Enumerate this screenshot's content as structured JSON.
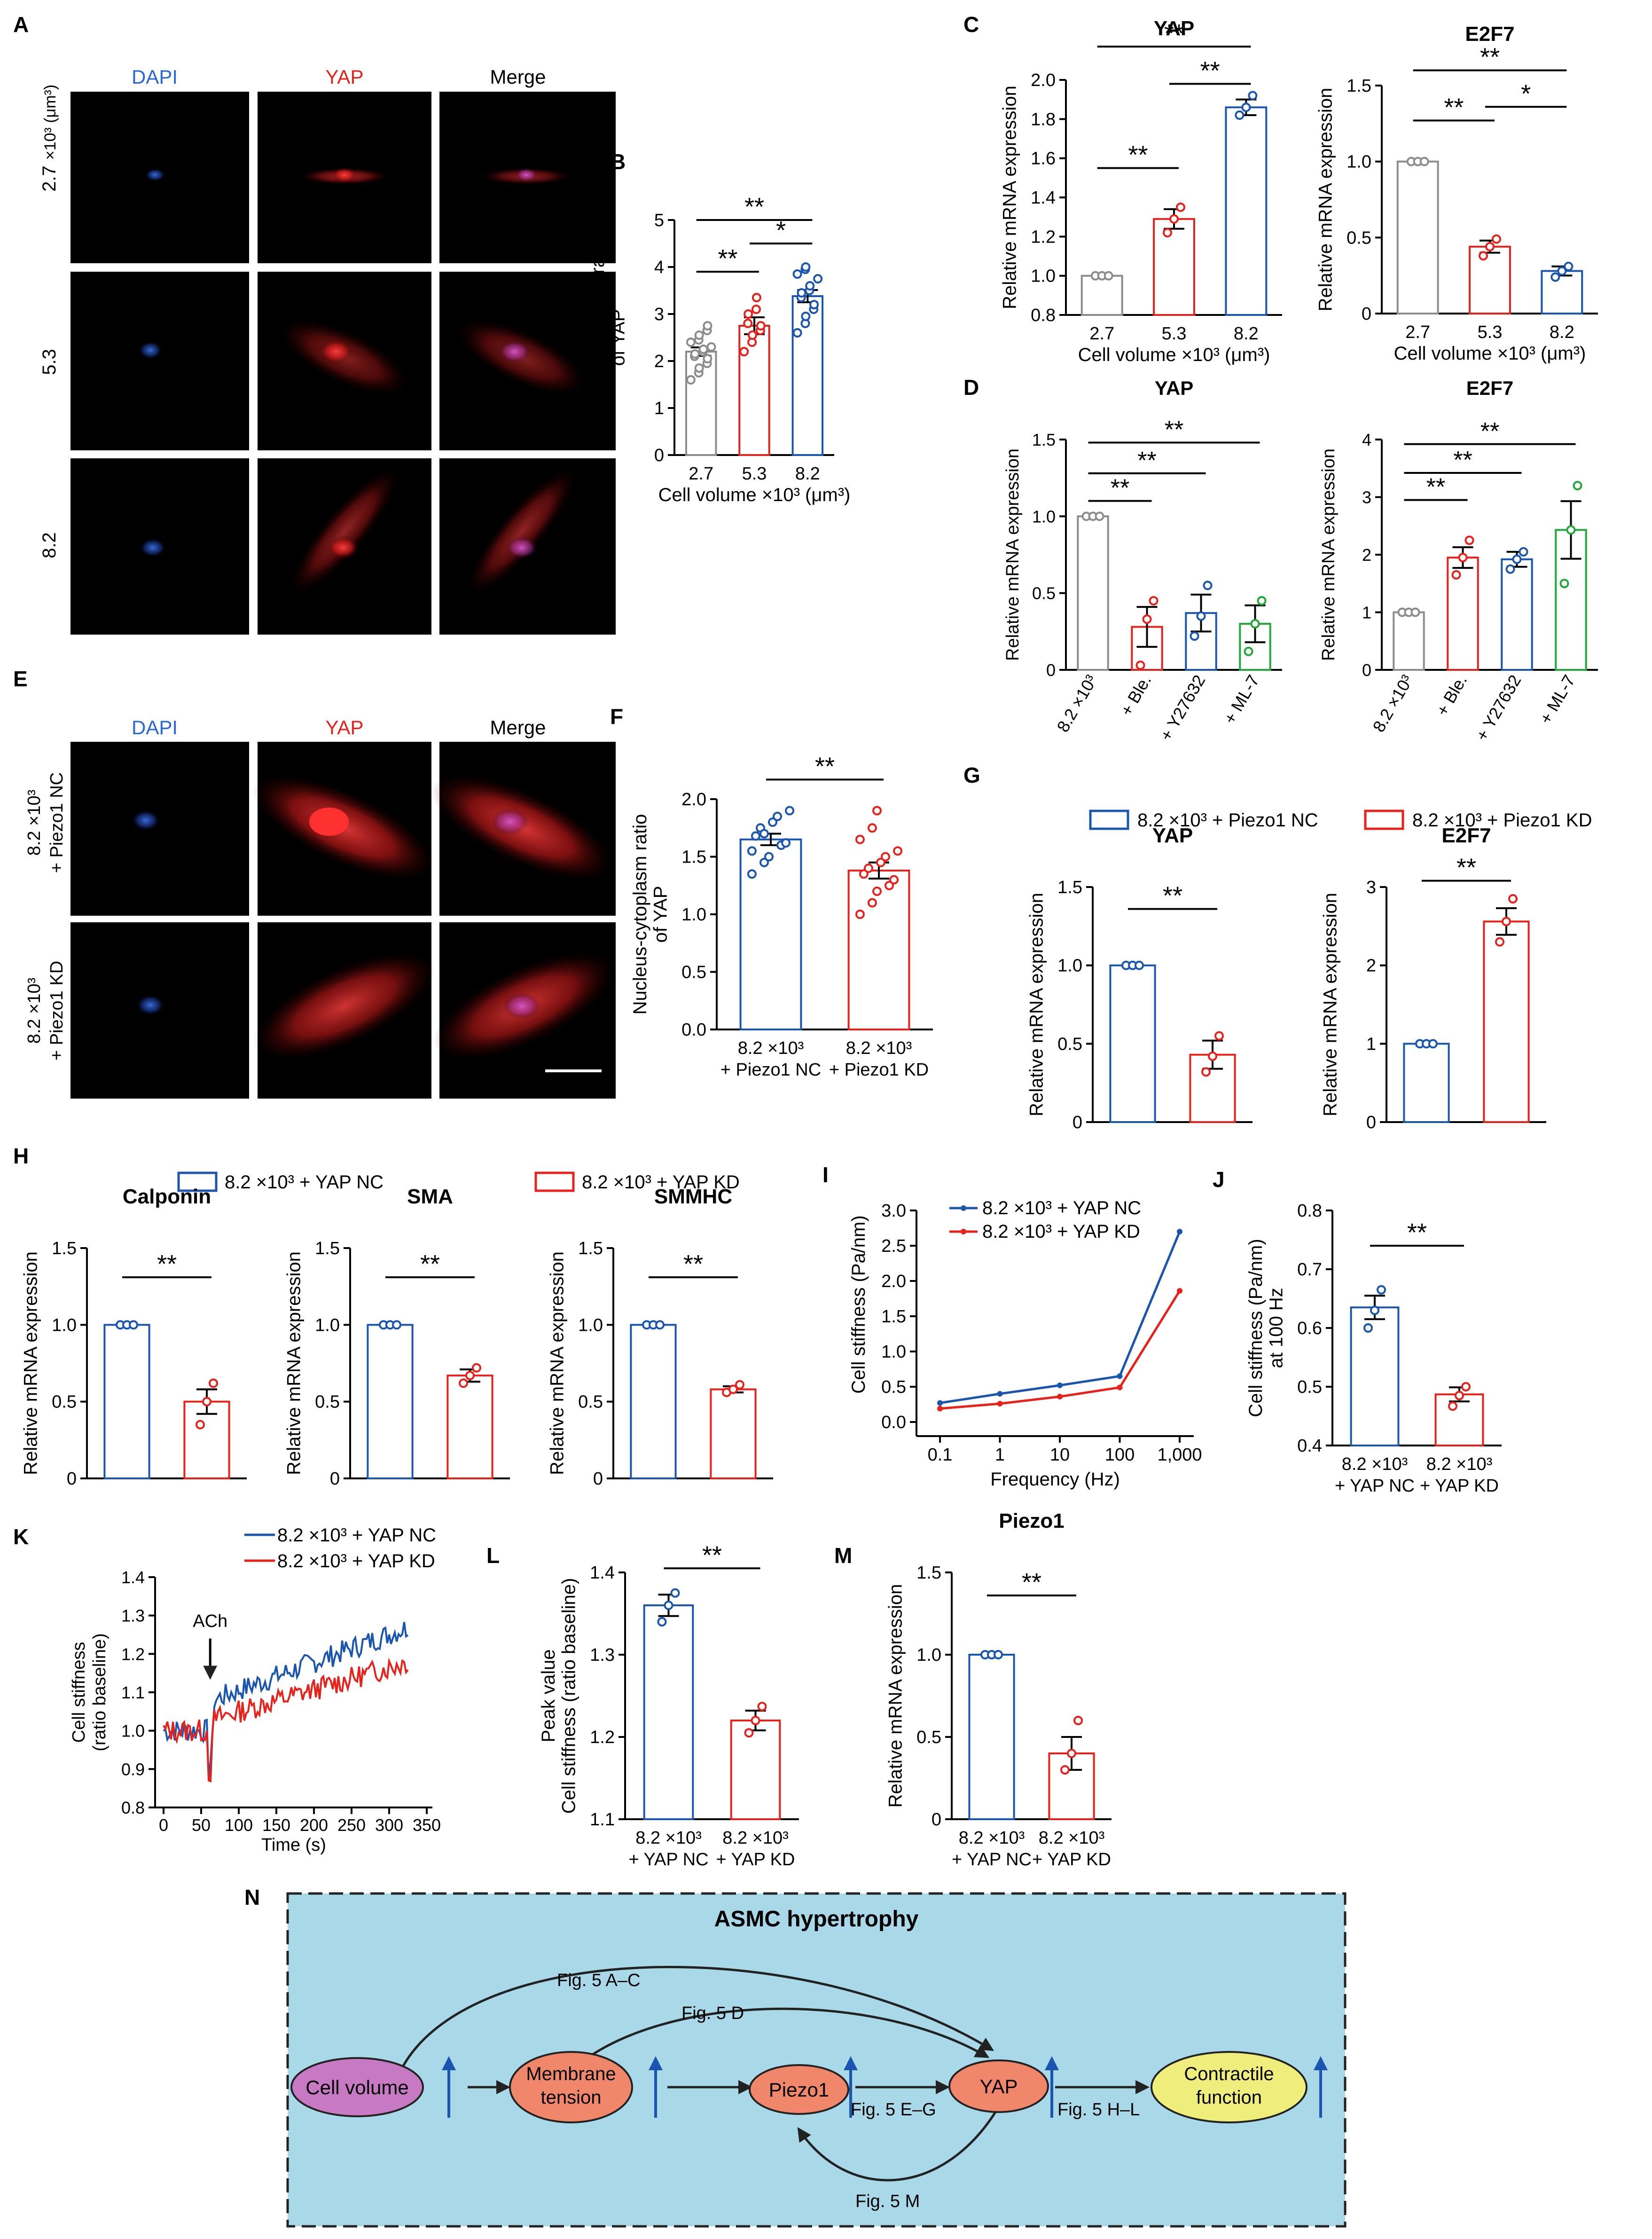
{
  "panel_letters": {
    "A": "A",
    "B": "B",
    "C": "C",
    "D": "D",
    "E": "E",
    "F": "F",
    "G": "G",
    "H": "H",
    "I": "I",
    "J": "J",
    "K": "K",
    "L": "L",
    "M": "M",
    "N": "N"
  },
  "colors": {
    "gray": "#8c8c8c",
    "red": "#e8221b",
    "blue": "#1a56b0",
    "green": "#22a838",
    "bg": "#a9d9e9",
    "dapi": "#2a67d6",
    "yap": "#e8221b"
  },
  "significance": {
    "double": "**",
    "single": "*"
  },
  "microscopy_A": {
    "channels": [
      "DAPI",
      "YAP",
      "Merge"
    ],
    "unit": "×10³ (μm³)",
    "rows": [
      "2.7",
      "5.3",
      "8.2"
    ]
  },
  "microscopy_E": {
    "channels": [
      "DAPI",
      "YAP",
      "Merge"
    ],
    "rows": [
      [
        "8.2 ×10³",
        "+ Piezo1 NC"
      ],
      [
        "8.2 ×10³",
        "+ Piezo1 KD"
      ]
    ]
  },
  "legend_G": [
    "8.2 ×10³ + Piezo1 NC",
    "8.2 ×10³ + Piezo1 KD"
  ],
  "legend_H": [
    "8.2 ×10³ + YAP NC",
    "8.2 ×10³ + YAP KD"
  ],
  "chart_data": [
    {
      "panel": "B",
      "type": "bar",
      "title": "",
      "xlabel": "Cell volume ×10³ (μm³)",
      "ylabel": [
        "Nucleus-cytoplasm ratio",
        "of YAP"
      ],
      "categories": [
        "2.7",
        "5.3",
        "8.2"
      ],
      "values": [
        2.2,
        2.75,
        3.38
      ],
      "errors": [
        0.09,
        0.18,
        0.13
      ],
      "points": [
        [
          1.6,
          1.75,
          1.85,
          1.95,
          2.05,
          2.1,
          2.15,
          2.2,
          2.25,
          2.3,
          2.4,
          2.45,
          2.55,
          2.65,
          2.75
        ],
        [
          2.2,
          2.4,
          2.55,
          2.65,
          2.75,
          2.8,
          3.0,
          3.1,
          3.35
        ],
        [
          2.6,
          2.8,
          2.95,
          3.1,
          3.2,
          3.35,
          3.45,
          3.5,
          3.6,
          3.75,
          3.85,
          3.95,
          4.0
        ]
      ],
      "ylim": [
        0,
        5
      ],
      "yticks": [
        "0",
        "1",
        "2",
        "3",
        "4",
        "5"
      ],
      "sig": [
        {
          "a": 0,
          "b": 1,
          "y": 3.9,
          "t": "**"
        },
        {
          "a": 1,
          "b": 2,
          "y": 4.5,
          "t": "*"
        },
        {
          "a": 0,
          "b": 2,
          "y": 5.0,
          "t": "**"
        }
      ]
    },
    {
      "panel": "C1",
      "type": "bar",
      "title": "YAP",
      "xlabel": "Cell volume ×10³ (μm³)",
      "ylabel": [
        "Relative mRNA expression"
      ],
      "categories": [
        "2.7",
        "5.3",
        "8.2"
      ],
      "values": [
        1.0,
        1.29,
        1.86
      ],
      "errors": [
        0.0,
        0.05,
        0.04
      ],
      "points": [
        [
          1.0,
          1.0,
          1.0
        ],
        [
          1.22,
          1.29,
          1.35
        ],
        [
          1.82,
          1.86,
          1.92
        ]
      ],
      "ylim": [
        0.8,
        2.0
      ],
      "yticks": [
        "0.8",
        "1.0",
        "1.2",
        "1.4",
        "1.6",
        "1.8",
        "2.0"
      ],
      "sig": [
        {
          "a": 0,
          "b": 1,
          "y": 1.55,
          "t": "**"
        },
        {
          "a": 1,
          "b": 2,
          "y": 1.98,
          "t": "**"
        },
        {
          "a": 0,
          "b": 2,
          "y": 2.17,
          "t": "**"
        }
      ]
    },
    {
      "panel": "C2",
      "type": "bar",
      "title": "E2F7",
      "xlabel": "Cell volume ×10³ (μm³)",
      "ylabel": [
        "Relative mRNA expression"
      ],
      "categories": [
        "2.7",
        "5.3",
        "8.2"
      ],
      "values": [
        1.0,
        0.44,
        0.28
      ],
      "errors": [
        0.0,
        0.04,
        0.03
      ],
      "points": [
        [
          1.0,
          1.0,
          1.0
        ],
        [
          0.38,
          0.44,
          0.49
        ],
        [
          0.24,
          0.28,
          0.31
        ]
      ],
      "ylim": [
        0,
        1.5
      ],
      "yticks": [
        "0",
        "0.5",
        "1.0",
        "1.5"
      ],
      "sig": [
        {
          "a": 0,
          "b": 1,
          "y": 1.27,
          "t": "**"
        },
        {
          "a": 1,
          "b": 2,
          "y": 1.36,
          "t": "*"
        },
        {
          "a": 0,
          "b": 2,
          "y": 1.6,
          "t": "**"
        }
      ]
    },
    {
      "panel": "D1",
      "type": "bar",
      "title": "YAP",
      "xlabel": "",
      "ylabel": [
        "Relative mRNA expression"
      ],
      "categories": [
        "8.2 ×10³",
        "+ Ble.",
        "+ Y27632",
        "+ ML-7"
      ],
      "values": [
        1.0,
        0.28,
        0.37,
        0.3
      ],
      "errors": [
        0.0,
        0.13,
        0.12,
        0.12
      ],
      "points": [
        [
          1.0,
          1.0,
          1.0
        ],
        [
          0.03,
          0.33,
          0.45
        ],
        [
          0.22,
          0.35,
          0.55
        ],
        [
          0.12,
          0.3,
          0.45
        ]
      ],
      "ylim": [
        0,
        1.5
      ],
      "yticks": [
        "0",
        "0.5",
        "1.0",
        "1.5"
      ],
      "sig": [
        {
          "a": 0,
          "b": 1,
          "y": 1.1,
          "t": "**"
        },
        {
          "a": 0,
          "b": 2,
          "y": 1.28,
          "t": "**"
        },
        {
          "a": 0,
          "b": 3,
          "y": 1.48,
          "t": "**"
        }
      ]
    },
    {
      "panel": "D2",
      "type": "bar",
      "title": "E2F7",
      "xlabel": "",
      "ylabel": [
        "Relative mRNA expression"
      ],
      "categories": [
        "8.2 ×10³",
        "+ Ble.",
        "+ Y27632",
        "+ ML-7"
      ],
      "values": [
        1.0,
        1.95,
        1.92,
        2.43
      ],
      "errors": [
        0.0,
        0.18,
        0.13,
        0.5
      ],
      "points": [
        [
          1.0,
          1.0,
          1.0
        ],
        [
          1.65,
          1.95,
          2.25
        ],
        [
          1.75,
          1.92,
          2.05
        ],
        [
          1.5,
          2.43,
          3.2
        ]
      ],
      "ylim": [
        0,
        4
      ],
      "yticks": [
        "0",
        "1",
        "2",
        "3",
        "4"
      ],
      "sig": [
        {
          "a": 0,
          "b": 1,
          "y": 2.95,
          "t": "**"
        },
        {
          "a": 0,
          "b": 2,
          "y": 3.42,
          "t": "**"
        },
        {
          "a": 0,
          "b": 3,
          "y": 3.92,
          "t": "**"
        }
      ]
    },
    {
      "panel": "F",
      "type": "bar",
      "title": "",
      "xlabel": "",
      "ylabel": [
        "Nucleus-cytoplasm ratio",
        "of YAP"
      ],
      "categories": [
        [
          "8.2 ×10³",
          "+ Piezo1 NC"
        ],
        [
          "8.2 ×10³",
          "+ Piezo1 KD"
        ]
      ],
      "values": [
        1.65,
        1.38
      ],
      "errors": [
        0.05,
        0.07
      ],
      "points": [
        [
          1.35,
          1.45,
          1.5,
          1.6,
          1.62,
          1.68,
          1.75,
          1.8,
          1.85,
          1.9,
          1.55,
          1.7
        ],
        [
          1.0,
          1.1,
          1.2,
          1.25,
          1.3,
          1.35,
          1.4,
          1.45,
          1.5,
          1.55,
          1.65,
          1.75,
          1.9
        ]
      ],
      "ylim": [
        0,
        2.0
      ],
      "yticks": [
        "0.0",
        "0.5",
        "1.0",
        "1.5",
        "2.0"
      ],
      "sig": [
        {
          "a": 0,
          "b": 1,
          "y": 2.17,
          "t": "**"
        }
      ]
    },
    {
      "panel": "G1",
      "type": "bar",
      "title": "YAP",
      "xlabel": "",
      "ylabel": [
        "Relative mRNA expression"
      ],
      "categories": [
        "",
        ""
      ],
      "values": [
        1.0,
        0.43
      ],
      "errors": [
        0.0,
        0.09
      ],
      "points": [
        [
          1.0,
          1.0,
          1.0
        ],
        [
          0.32,
          0.42,
          0.55
        ]
      ],
      "ylim": [
        0,
        1.5
      ],
      "yticks": [
        "0",
        "0.5",
        "1.0",
        "1.5"
      ],
      "sig": [
        {
          "a": 0,
          "b": 1,
          "y": 1.36,
          "t": "**"
        }
      ]
    },
    {
      "panel": "G2",
      "type": "bar",
      "title": "E2F7",
      "xlabel": "",
      "ylabel": [
        "Relative mRNA expression"
      ],
      "categories": [
        "",
        ""
      ],
      "values": [
        1.0,
        2.56
      ],
      "errors": [
        0.0,
        0.17
      ],
      "points": [
        [
          1.0,
          1.0,
          1.0
        ],
        [
          2.3,
          2.56,
          2.85
        ]
      ],
      "ylim": [
        0,
        3
      ],
      "yticks": [
        "0",
        "1",
        "2",
        "3"
      ],
      "sig": [
        {
          "a": 0,
          "b": 1,
          "y": 3.08,
          "t": "**"
        }
      ]
    },
    {
      "panel": "H1",
      "type": "bar",
      "title": "Calponin",
      "xlabel": "",
      "ylabel": [
        "Relative mRNA expression"
      ],
      "categories": [
        "",
        ""
      ],
      "values": [
        1.0,
        0.5
      ],
      "errors": [
        0.0,
        0.08
      ],
      "points": [
        [
          1.0,
          1.0,
          1.0
        ],
        [
          0.35,
          0.5,
          0.62
        ]
      ],
      "ylim": [
        0,
        1.5
      ],
      "yticks": [
        "0",
        "0.5",
        "1.0",
        "1.5"
      ],
      "sig": [
        {
          "a": 0,
          "b": 1,
          "y": 1.31,
          "t": "**"
        }
      ]
    },
    {
      "panel": "H2",
      "type": "bar",
      "title": "SMA",
      "xlabel": "",
      "ylabel": [
        "Relative mRNA expression"
      ],
      "categories": [
        "",
        ""
      ],
      "values": [
        1.0,
        0.67
      ],
      "errors": [
        0.0,
        0.04
      ],
      "points": [
        [
          1.0,
          1.0,
          1.0
        ],
        [
          0.62,
          0.67,
          0.72
        ]
      ],
      "ylim": [
        0,
        1.5
      ],
      "yticks": [
        "0",
        "0.5",
        "1.0",
        "1.5"
      ],
      "sig": [
        {
          "a": 0,
          "b": 1,
          "y": 1.31,
          "t": "**"
        }
      ]
    },
    {
      "panel": "H3",
      "type": "bar",
      "title": "SMMHC",
      "xlabel": "",
      "ylabel": [
        "Relative mRNA expression"
      ],
      "categories": [
        "",
        ""
      ],
      "values": [
        1.0,
        0.58
      ],
      "errors": [
        0.0,
        0.02
      ],
      "points": [
        [
          1.0,
          1.0,
          1.0
        ],
        [
          0.56,
          0.58,
          0.61
        ]
      ],
      "ylim": [
        0,
        1.5
      ],
      "yticks": [
        "0",
        "0.5",
        "1.0",
        "1.5"
      ],
      "sig": [
        {
          "a": 0,
          "b": 1,
          "y": 1.31,
          "t": "**"
        }
      ]
    },
    {
      "panel": "I",
      "type": "line",
      "title": "",
      "xlabel": "Frequency (Hz)",
      "ylabel": [
        "Cell stiffness (Pa/nm)"
      ],
      "x": [
        "0.1",
        "1",
        "10",
        "100",
        "1,000"
      ],
      "series": [
        {
          "name": "8.2 ×10³ + YAP NC",
          "values": [
            0.27,
            0.4,
            0.52,
            0.65,
            2.7
          ]
        },
        {
          "name": "8.2 ×10³ + YAP KD",
          "values": [
            0.19,
            0.26,
            0.36,
            0.49,
            1.86
          ]
        }
      ],
      "ylim": [
        -0.2,
        3.0
      ],
      "yticks": [
        "0.0",
        "0.5",
        "1.0",
        "1.5",
        "2.0",
        "2.5",
        "3.0"
      ]
    },
    {
      "panel": "J",
      "type": "bar",
      "title": "",
      "xlabel": "",
      "ylabel": [
        "Cell stiffness (Pa/nm)",
        "at 100 Hz"
      ],
      "categories": [
        [
          "8.2 ×10³",
          "+ YAP NC"
        ],
        [
          "8.2 ×10³",
          "+ YAP KD"
        ]
      ],
      "values": [
        0.635,
        0.487
      ],
      "errors": [
        0.02,
        0.012
      ],
      "points": [
        [
          0.6,
          0.63,
          0.665
        ],
        [
          0.467,
          0.485,
          0.5
        ]
      ],
      "ylim": [
        0.4,
        0.8
      ],
      "yticks": [
        "0.4",
        "0.5",
        "0.6",
        "0.7",
        "0.8"
      ],
      "sig": [
        {
          "a": 0,
          "b": 1,
          "y": 0.74,
          "t": "**"
        }
      ]
    },
    {
      "panel": "K",
      "type": "line",
      "title": "",
      "xlabel": "Time (s)",
      "ylabel": [
        "Cell stiffness",
        "(ratio baseline)"
      ],
      "x": [
        0,
        50,
        100,
        150,
        200,
        250,
        300,
        350
      ],
      "xticks": [
        "0",
        "50",
        "100",
        "150",
        "200",
        "250",
        "300",
        "350"
      ],
      "series": [
        {
          "name": "8.2 ×10³ + YAP NC"
        },
        {
          "name": "8.2 ×10³ + YAP KD"
        }
      ],
      "annotation": "ACh",
      "ylim": [
        0.8,
        1.4
      ],
      "yticks": [
        "0.8",
        "0.9",
        "1.0",
        "1.1",
        "1.2",
        "1.3",
        "1.4"
      ]
    },
    {
      "panel": "L",
      "type": "bar",
      "title": "",
      "xlabel": "",
      "ylabel": [
        "Peak value",
        "Cell stiffness (ratio baseline)"
      ],
      "categories": [
        [
          "8.2 ×10³",
          "+ YAP NC"
        ],
        [
          "8.2 ×10³",
          "+ YAP KD"
        ]
      ],
      "values": [
        1.36,
        1.22
      ],
      "errors": [
        0.013,
        0.012
      ],
      "points": [
        [
          1.34,
          1.36,
          1.375
        ],
        [
          1.205,
          1.22,
          1.237
        ]
      ],
      "ylim": [
        1.1,
        1.4
      ],
      "yticks": [
        "1.1",
        "1.2",
        "1.3",
        "1.4"
      ],
      "sig": [
        {
          "a": 0,
          "b": 1,
          "y": 1.405,
          "t": "**"
        }
      ]
    },
    {
      "panel": "M",
      "type": "bar",
      "title": "Piezo1",
      "xlabel": "",
      "ylabel": [
        "Relative mRNA expression"
      ],
      "categories": [
        [
          "8.2 ×10³",
          "+ YAP NC"
        ],
        [
          "8.2 ×10³",
          "+ YAP KD"
        ]
      ],
      "values": [
        1.0,
        0.4
      ],
      "errors": [
        0.0,
        0.1
      ],
      "points": [
        [
          1.0,
          1.0,
          1.0
        ],
        [
          0.3,
          0.4,
          0.6
        ]
      ],
      "ylim": [
        0,
        1.5
      ],
      "yticks": [
        "0",
        "0.5",
        "1.0",
        "1.5"
      ],
      "sig": [
        {
          "a": 0,
          "b": 1,
          "y": 1.36,
          "t": "**"
        }
      ]
    }
  ],
  "diagram": {
    "title": "ASMC hypertrophy",
    "nodes": [
      "Cell volume",
      "Membrane\ntension",
      "Piezo1",
      "YAP",
      "Contractile\nfunction"
    ],
    "links": [
      "Fig. 5 A–C",
      "Fig. 5 D",
      "Fig. 5 E–G",
      "Fig. 5 H–L",
      "Fig. 5 M"
    ]
  }
}
